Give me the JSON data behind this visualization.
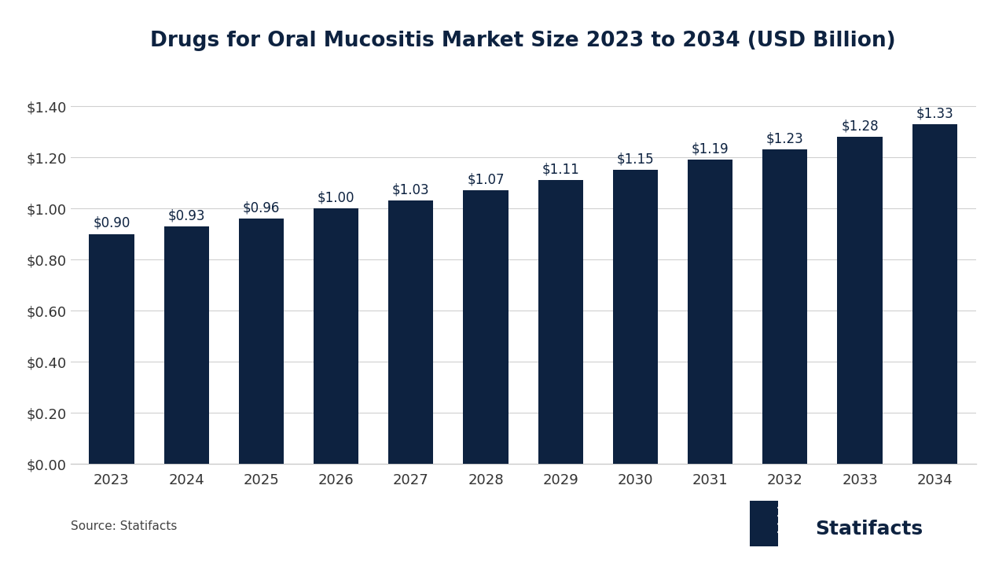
{
  "title": "Drugs for Oral Mucositis Market Size 2023 to 2034 (USD Billion)",
  "years": [
    2023,
    2024,
    2025,
    2026,
    2027,
    2028,
    2029,
    2030,
    2031,
    2032,
    2033,
    2034
  ],
  "values": [
    0.9,
    0.93,
    0.96,
    1.0,
    1.03,
    1.07,
    1.11,
    1.15,
    1.19,
    1.23,
    1.28,
    1.33
  ],
  "labels": [
    "$0.90",
    "$0.93",
    "$0.96",
    "$1.00",
    "$1.03",
    "$1.07",
    "$1.11",
    "$1.15",
    "$1.19",
    "$1.23",
    "$1.28",
    "$1.33"
  ],
  "bar_color": "#0d2240",
  "background_color": "#ffffff",
  "title_fontsize": 19,
  "tick_fontsize": 13,
  "label_fontsize": 12,
  "ylim": [
    0,
    1.55
  ],
  "yticks": [
    0.0,
    0.2,
    0.4,
    0.6,
    0.8,
    1.0,
    1.2,
    1.4
  ],
  "ytick_labels": [
    "$0.00",
    "$0.20",
    "$0.40",
    "$0.60",
    "$0.80",
    "$1.00",
    "$1.20",
    "$1.40"
  ],
  "source_text": "Source: Statifacts",
  "brand_text": "Statifacts",
  "grid_color": "#d0d0d0",
  "spine_color": "#cccccc",
  "text_color": "#0d2240",
  "tick_color": "#333333"
}
